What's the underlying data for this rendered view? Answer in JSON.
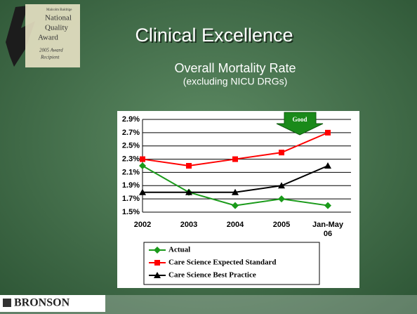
{
  "slide": {
    "title": "Clinical Excellence",
    "logo": [
      "Malcolm Baldrige",
      "National",
      "Quality",
      "Award",
      "2005 Award",
      "Recipient"
    ],
    "footer": "BRONSON"
  },
  "chart_data": {
    "type": "line",
    "title": "Overall Mortality Rate",
    "subtitle": "(excluding NICU DRGs)",
    "categories": [
      "2002",
      "2003",
      "2004",
      "2005",
      "Jan-May 06"
    ],
    "series": [
      {
        "name": "Actual",
        "color": "#1a9a1a",
        "marker": "diamond",
        "values": [
          2.2,
          1.8,
          1.6,
          1.7,
          1.6
        ]
      },
      {
        "name": "Care Science Expected Standard",
        "color": "#ff0000",
        "marker": "square",
        "values": [
          2.3,
          2.2,
          2.3,
          2.4,
          2.7
        ]
      },
      {
        "name": "Care Science Best Practice",
        "color": "#000000",
        "marker": "triangle",
        "values": [
          1.8,
          1.8,
          1.8,
          1.9,
          2.2
        ]
      }
    ],
    "ylim": [
      1.5,
      2.9
    ],
    "yticks": [
      {
        "value": 1.5,
        "label": "1.5%"
      },
      {
        "value": 1.7,
        "label": "1.7%"
      },
      {
        "value": 1.9,
        "label": "1.9%"
      },
      {
        "value": 2.1,
        "label": "2.1%"
      },
      {
        "value": 2.3,
        "label": "2.3%"
      },
      {
        "value": 2.5,
        "label": "2.5%"
      },
      {
        "value": 2.7,
        "label": "2.7%"
      },
      {
        "value": 2.9,
        "label": "2.9%"
      }
    ],
    "grid": true,
    "legend": "bottom",
    "annotation": "Good"
  }
}
